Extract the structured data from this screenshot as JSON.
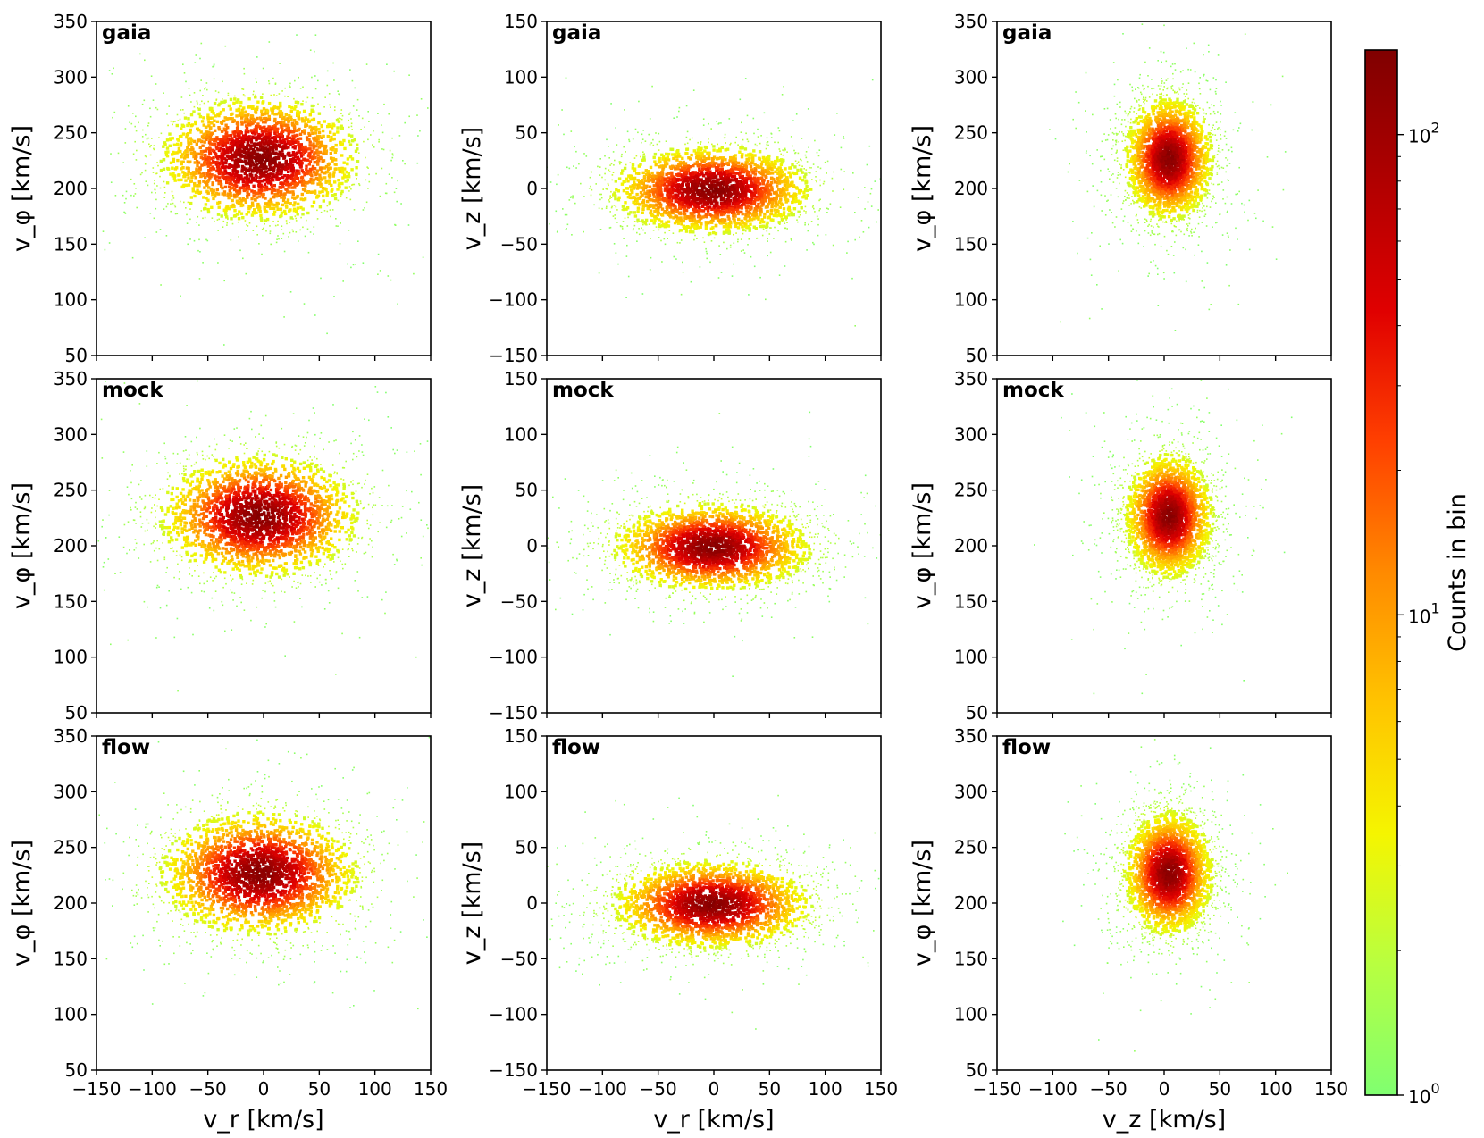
{
  "chart_data": {
    "type": "heatmap",
    "figure_layout": "3x3 grid of 2D histograms",
    "row_labels": [
      "gaia",
      "mock",
      "flow"
    ],
    "columns": [
      {
        "x_var": "vr",
        "y_var": "vphi",
        "xlabel": "v_r [km/s]",
        "ylabel": "v_φ [km/s]",
        "xlim": [
          -150,
          150
        ],
        "ylim": [
          50,
          350
        ],
        "xticks": [
          "−150",
          "−100",
          "−50",
          "0",
          "50",
          "100",
          "150"
        ],
        "yticks": [
          "50",
          "100",
          "150",
          "200",
          "250",
          "300",
          "350"
        ]
      },
      {
        "x_var": "vr",
        "y_var": "vz",
        "xlabel": "v_r [km/s]",
        "ylabel": "v_z [km/s]",
        "xlim": [
          -150,
          150
        ],
        "ylim": [
          -150,
          150
        ],
        "xticks": [
          "−150",
          "−100",
          "−50",
          "0",
          "50",
          "100",
          "150"
        ],
        "yticks": [
          "−150",
          "−100",
          "−50",
          "0",
          "50",
          "100",
          "150"
        ]
      },
      {
        "x_var": "vz",
        "y_var": "vphi",
        "xlabel": "v_z [km/s]",
        "ylabel": "v_φ [km/s]",
        "xlim": [
          -150,
          150
        ],
        "ylim": [
          50,
          350
        ],
        "xticks": [
          "−150",
          "−100",
          "−50",
          "0",
          "50",
          "100",
          "150"
        ],
        "yticks": [
          "50",
          "100",
          "150",
          "200",
          "250",
          "300",
          "350"
        ]
      }
    ],
    "distribution_centers": {
      "vr_vphi": {
        "center": [
          -5,
          228
        ],
        "spread_x": 45,
        "spread_y": 28
      },
      "vr_vz": {
        "center": [
          -3,
          0
        ],
        "spread_x": 45,
        "spread_y": 20
      },
      "vz_vphi": {
        "center": [
          3,
          228
        ],
        "spread_x": 20,
        "spread_y": 28
      }
    },
    "colorbar": {
      "label": "Counts in bin",
      "scale": "log",
      "range": [
        1,
        150
      ],
      "ticks": [
        {
          "value": 1,
          "base": "10",
          "exp": "0"
        },
        {
          "value": 10,
          "base": "10",
          "exp": "1"
        },
        {
          "value": 100,
          "base": "10",
          "exp": "2"
        }
      ],
      "colors": [
        "#80ff70",
        "#b8ff40",
        "#f5f500",
        "#ffc400",
        "#ff8a00",
        "#ff4000",
        "#e00000",
        "#b00000",
        "#800000"
      ]
    }
  }
}
